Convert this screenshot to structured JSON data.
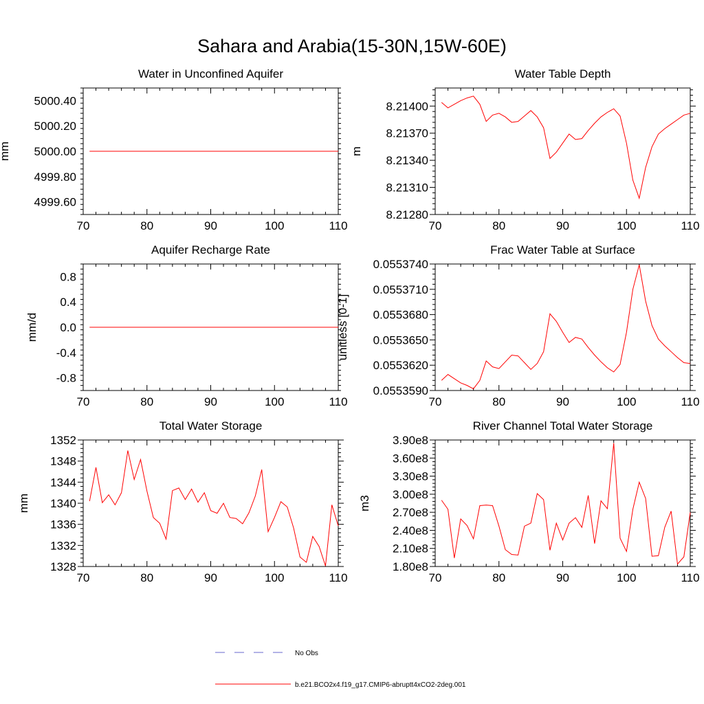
{
  "page": {
    "title": "Sahara and Arabia(15-30N,15W-60E)"
  },
  "legend": {
    "items": [
      {
        "label": "No Obs",
        "style": "dashed",
        "color": "#6666cc"
      },
      {
        "label": "b.e21.BCO2x4.f19_g17.CMIP6-abruptt4xCO2-2deg.001",
        "style": "solid",
        "color": "#ff0000"
      }
    ]
  },
  "chart_data": [
    {
      "type": "line",
      "title": "Water in Unconfined Aquifer",
      "xlabel": "",
      "ylabel": "mm",
      "xlim": [
        70,
        110
      ],
      "ylim": [
        4999.5,
        5000.5
      ],
      "xticks": [
        70,
        80,
        90,
        100,
        110
      ],
      "xtick_labels": [
        "70",
        "80",
        "90",
        "100",
        "110"
      ],
      "yticks": [
        4999.6,
        4999.8,
        5000.0,
        5000.2,
        5000.4
      ],
      "ytick_labels": [
        "4999.60",
        "4999.80",
        "5000.00",
        "5000.20",
        "5000.40"
      ],
      "series": [
        {
          "name": "b.e21.BCO2x4.f19_g17.CMIP6-abruptt4xCO2-2deg.001",
          "color": "#ff0000",
          "x": [
            71,
            110
          ],
          "y": [
            5000.0,
            5000.0
          ]
        }
      ]
    },
    {
      "type": "line",
      "title": "Water Table Depth",
      "xlabel": "",
      "ylabel": "m",
      "xlim": [
        70,
        110
      ],
      "ylim": [
        8.2128,
        8.2142
      ],
      "xticks": [
        70,
        80,
        90,
        100,
        110
      ],
      "xtick_labels": [
        "70",
        "80",
        "90",
        "100",
        "110"
      ],
      "yticks": [
        8.2128,
        8.2131,
        8.2134,
        8.2137,
        8.214
      ],
      "ytick_labels": [
        "8.21280",
        "8.21310",
        "8.21340",
        "8.21370",
        "8.21400"
      ],
      "series": [
        {
          "name": "b.e21.BCO2x4.f19_g17.CMIP6-abruptt4xCO2-2deg.001",
          "color": "#ff0000",
          "x": [
            71,
            72,
            73,
            74,
            75,
            76,
            77,
            78,
            79,
            80,
            81,
            82,
            83,
            84,
            85,
            86,
            87,
            88,
            89,
            90,
            91,
            92,
            93,
            94,
            95,
            96,
            97,
            98,
            99,
            100,
            101,
            102,
            103,
            104,
            105,
            106,
            107,
            108,
            109,
            110
          ],
          "y": [
            8.21404,
            8.21398,
            8.21402,
            8.21406,
            8.21409,
            8.21411,
            8.21402,
            8.21383,
            8.2139,
            8.21392,
            8.21388,
            8.21382,
            8.21383,
            8.21389,
            8.21395,
            8.21388,
            8.21376,
            8.21342,
            8.21349,
            8.21359,
            8.21369,
            8.21363,
            8.21364,
            8.21373,
            8.21381,
            8.21388,
            8.21393,
            8.21397,
            8.21389,
            8.21359,
            8.21318,
            8.21298,
            8.21332,
            8.21355,
            8.21369,
            8.21375,
            8.2138,
            8.21385,
            8.2139,
            8.21392
          ]
        }
      ]
    },
    {
      "type": "line",
      "title": "Aquifer Recharge Rate",
      "xlabel": "",
      "ylabel": "mm/d",
      "xlim": [
        70,
        110
      ],
      "ylim": [
        -1.0,
        1.0
      ],
      "xticks": [
        70,
        80,
        90,
        100,
        110
      ],
      "xtick_labels": [
        "70",
        "80",
        "90",
        "100",
        "110"
      ],
      "yticks": [
        -0.8,
        -0.4,
        0.0,
        0.4,
        0.8
      ],
      "ytick_labels": [
        "-0.8",
        "-0.4",
        "0.0",
        "0.4",
        "0.8"
      ],
      "series": [
        {
          "name": "b.e21.BCO2x4.f19_g17.CMIP6-abruptt4xCO2-2deg.001",
          "color": "#ff0000",
          "x": [
            71,
            110
          ],
          "y": [
            0.0,
            0.0
          ]
        }
      ]
    },
    {
      "type": "line",
      "title": "Frac Water Table at Surface",
      "xlabel": "",
      "ylabel": "unitless [0-1]",
      "xlim": [
        70,
        110
      ],
      "ylim": [
        0.055359,
        0.055374
      ],
      "xticks": [
        70,
        80,
        90,
        100,
        110
      ],
      "xtick_labels": [
        "70",
        "80",
        "90",
        "100",
        "110"
      ],
      "yticks": [
        0.055359,
        0.055362,
        0.055365,
        0.055368,
        0.055371,
        0.055374
      ],
      "ytick_labels": [
        "0.0553590",
        "0.0553620",
        "0.0553650",
        "0.0553680",
        "0.0553710",
        "0.0553740"
      ],
      "series": [
        {
          "name": "b.e21.BCO2x4.f19_g17.CMIP6-abruptt4xCO2-2deg.001",
          "color": "#ff0000",
          "x": [
            71,
            72,
            73,
            74,
            75,
            76,
            77,
            78,
            79,
            80,
            81,
            82,
            83,
            84,
            85,
            86,
            87,
            88,
            89,
            90,
            91,
            92,
            93,
            94,
            95,
            96,
            97,
            98,
            99,
            100,
            101,
            102,
            103,
            104,
            105,
            106,
            107,
            108,
            109,
            110
          ],
          "y": [
            0.0553602,
            0.0553609,
            0.0553604,
            0.0553599,
            0.0553596,
            0.0553592,
            0.0553602,
            0.0553625,
            0.0553618,
            0.0553616,
            0.0553624,
            0.0553632,
            0.0553631,
            0.0553623,
            0.0553615,
            0.0553622,
            0.0553636,
            0.0553681,
            0.0553672,
            0.0553659,
            0.0553647,
            0.0553653,
            0.0553651,
            0.0553641,
            0.0553632,
            0.0553624,
            0.0553617,
            0.0553612,
            0.0553621,
            0.0553659,
            0.055371,
            0.0553739,
            0.0553696,
            0.0553667,
            0.0553651,
            0.0553643,
            0.0553636,
            0.0553629,
            0.0553623,
            0.0553622
          ]
        }
      ]
    },
    {
      "type": "line",
      "title": "Total Water Storage",
      "xlabel": "",
      "ylabel": "mm",
      "xlim": [
        70,
        110
      ],
      "ylim": [
        1328,
        1352
      ],
      "xticks": [
        70,
        80,
        90,
        100,
        110
      ],
      "xtick_labels": [
        "70",
        "80",
        "90",
        "100",
        "110"
      ],
      "yticks": [
        1328,
        1332,
        1336,
        1340,
        1344,
        1348,
        1352
      ],
      "ytick_labels": [
        "1328",
        "1332",
        "1336",
        "1340",
        "1344",
        "1348",
        "1352"
      ],
      "series": [
        {
          "name": "b.e21.BCO2x4.f19_g17.CMIP6-abruptt4xCO2-2deg.001",
          "color": "#ff0000",
          "x": [
            71,
            72,
            73,
            74,
            75,
            76,
            77,
            78,
            79,
            80,
            81,
            82,
            83,
            84,
            85,
            86,
            87,
            88,
            89,
            90,
            91,
            92,
            93,
            94,
            95,
            96,
            97,
            98,
            99,
            100,
            101,
            102,
            103,
            104,
            105,
            106,
            107,
            108,
            109,
            110
          ],
          "y": [
            1340.4,
            1346.8,
            1340.1,
            1341.6,
            1339.7,
            1342.0,
            1350.0,
            1344.5,
            1348.3,
            1342.3,
            1337.3,
            1336.2,
            1333.2,
            1342.4,
            1342.9,
            1340.7,
            1342.7,
            1340.2,
            1342.0,
            1338.6,
            1338.1,
            1340.0,
            1337.3,
            1337.1,
            1336.1,
            1338.2,
            1341.4,
            1346.4,
            1334.6,
            1337.3,
            1340.3,
            1339.3,
            1335.3,
            1329.8,
            1328.8,
            1333.7,
            1331.8,
            1328.1,
            1339.7,
            1335.7
          ]
        }
      ]
    },
    {
      "type": "line",
      "title": "River Channel Total Water Storage",
      "xlabel": "",
      "ylabel": "m3",
      "xlim": [
        70,
        110
      ],
      "ylim": [
        180000000,
        390000000
      ],
      "xticks": [
        70,
        80,
        90,
        100,
        110
      ],
      "xtick_labels": [
        "70",
        "80",
        "90",
        "100",
        "110"
      ],
      "yticks": [
        180000000,
        210000000,
        240000000,
        270000000,
        300000000,
        330000000,
        360000000,
        390000000
      ],
      "ytick_labels": [
        "1.80e8",
        "2.10e8",
        "2.40e8",
        "2.70e8",
        "3.00e8",
        "3.30e8",
        "3.60e8",
        "3.90e8"
      ],
      "series": [
        {
          "name": "b.e21.BCO2x4.f19_g17.CMIP6-abruptt4xCO2-2deg.001",
          "color": "#ff0000",
          "x": [
            71,
            72,
            73,
            74,
            75,
            76,
            77,
            78,
            79,
            80,
            81,
            82,
            83,
            84,
            85,
            86,
            87,
            88,
            89,
            90,
            91,
            92,
            93,
            94,
            95,
            96,
            97,
            98,
            99,
            100,
            101,
            102,
            103,
            104,
            105,
            106,
            107,
            108,
            109,
            110
          ],
          "y": [
            290000000,
            275000000,
            194000000,
            259000000,
            248000000,
            226000000,
            281000000,
            282000000,
            281000000,
            247000000,
            208000000,
            200000000,
            199000000,
            247000000,
            252000000,
            301000000,
            291000000,
            207000000,
            252000000,
            224000000,
            252000000,
            261000000,
            245000000,
            298000000,
            218000000,
            289000000,
            276000000,
            385000000,
            227000000,
            205000000,
            275000000,
            320000000,
            293000000,
            197000000,
            198000000,
            245000000,
            272000000,
            184000000,
            196000000,
            270000000
          ]
        }
      ]
    }
  ]
}
